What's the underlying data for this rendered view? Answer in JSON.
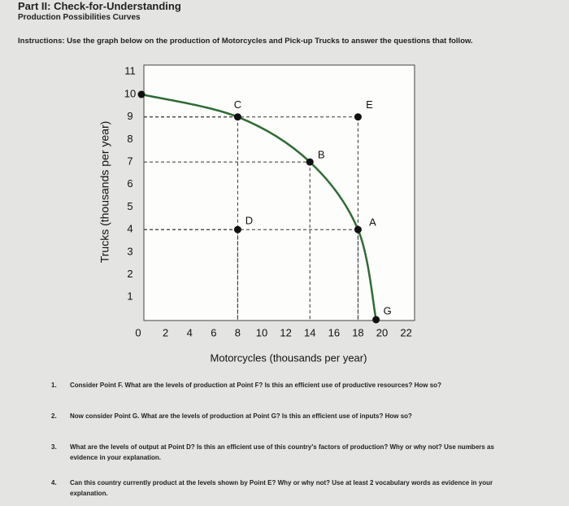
{
  "header": {
    "title": "Part II: Check-for-Understanding",
    "subtitle": "Production Possibilities Curves"
  },
  "instructions": "Instructions: Use the graph below on the production of Motorcycles and Pick-up Trucks to answer the questions that follow.",
  "chart_data": {
    "type": "ppf",
    "x_label": "Motorcycles (thousands per year)",
    "y_label": "Trucks (thousands per year)",
    "xlim": [
      0,
      22.7
    ],
    "ylim": [
      0,
      11.3
    ],
    "xticks": [
      0,
      2,
      4,
      6,
      8,
      10,
      12,
      14,
      16,
      18,
      20,
      22
    ],
    "yticks": [
      1,
      2,
      3,
      4,
      5,
      6,
      7,
      8,
      9,
      10,
      11
    ],
    "curve": {
      "color": "#2f6b35",
      "x": [
        0,
        8,
        14,
        18,
        19.5
      ],
      "y": [
        10,
        9,
        7,
        4,
        0
      ]
    },
    "points": [
      {
        "x": 0,
        "y": 10
      },
      {
        "label": "C",
        "x": 8,
        "y": 9
      },
      {
        "label": "E",
        "x": 18,
        "y": 9
      },
      {
        "label": "B",
        "x": 14,
        "y": 7
      },
      {
        "label": "D",
        "x": 8,
        "y": 4
      },
      {
        "label": "A",
        "x": 18,
        "y": 4
      },
      {
        "label": "G",
        "x": 19.5,
        "y": 0
      }
    ]
  },
  "questions": [
    {
      "number": "1.",
      "text": "Consider Point F. What are the levels of production at Point F? Is this an efficient use of productive resources? How so?"
    },
    {
      "number": "2.",
      "text": "Now consider Point G. What are the levels of production at Point G? Is this an efficient use of inputs? How so?"
    },
    {
      "number": "3.",
      "text": "What are the levels of output at Point D? Is this an efficient use of this country's factors of production? Why or why not? Use numbers as evidence in your explanation."
    },
    {
      "number": "4.",
      "text": "Can this country currently product at the levels shown by Point E? Why or why not? Use at least 2 vocabulary words as evidence in your explanation."
    }
  ]
}
